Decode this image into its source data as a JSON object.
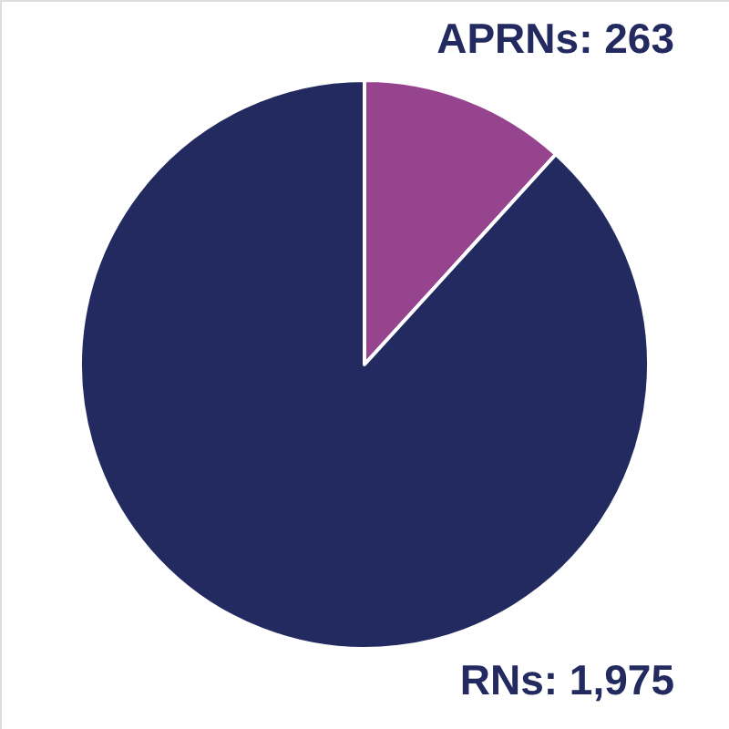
{
  "chart_data": {
    "type": "pie",
    "categories": [
      "APRNs",
      "RNs"
    ],
    "values": [
      263,
      1975
    ],
    "value_labels": [
      "263",
      "1,975"
    ],
    "colors": [
      "#97448f",
      "#222a5f"
    ]
  }
}
